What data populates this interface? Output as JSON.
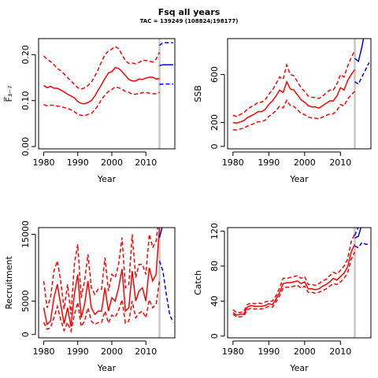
{
  "figure": {
    "title": "Fsq all years",
    "subtitle": "TAC = 139249 (108824;198177)"
  },
  "colors": {
    "history": "#ff0000",
    "projection": "#0000ff",
    "tac_year_line": "#c8c8c8"
  },
  "chart_data": [
    {
      "type": "line",
      "ylabel": "F̅₃₋₇",
      "xlabel": "Year",
      "xticks": [
        "1980",
        "1990",
        "2000",
        "2010"
      ],
      "yticks": [
        "0.00",
        "0.10",
        "0.20"
      ],
      "ytick_values": [
        0,
        0.1,
        0.2
      ],
      "xlim": [
        1978.5,
        2018.5
      ],
      "ylim": [
        -0.005,
        0.235
      ],
      "vline_year": 2014,
      "x": [
        1980,
        1981,
        1982,
        1983,
        1984,
        1985,
        1986,
        1987,
        1988,
        1989,
        1990,
        1991,
        1992,
        1993,
        1994,
        1995,
        1996,
        1997,
        1998,
        1999,
        2000,
        2001,
        2002,
        2003,
        2004,
        2005,
        2006,
        2007,
        2008,
        2009,
        2010,
        2011,
        2012,
        2013,
        2014
      ],
      "series": [
        {
          "role": "estimate",
          "style": "solid",
          "values": [
            0.133,
            0.128,
            0.131,
            0.127,
            0.127,
            0.123,
            0.119,
            0.114,
            0.11,
            0.106,
            0.098,
            0.094,
            0.093,
            0.096,
            0.1,
            0.11,
            0.123,
            0.135,
            0.148,
            0.16,
            0.163,
            0.172,
            0.17,
            0.163,
            0.155,
            0.146,
            0.143,
            0.143,
            0.147,
            0.146,
            0.149,
            0.151,
            0.151,
            0.147,
            0.148
          ]
        },
        {
          "role": "upper",
          "style": "dashed",
          "values": [
            0.197,
            0.19,
            0.185,
            0.178,
            0.17,
            0.165,
            0.158,
            0.15,
            0.143,
            0.135,
            0.128,
            0.125,
            0.128,
            0.133,
            0.14,
            0.153,
            0.168,
            0.185,
            0.2,
            0.208,
            0.212,
            0.218,
            0.213,
            0.2,
            0.187,
            0.181,
            0.182,
            0.18,
            0.183,
            0.188,
            0.187,
            0.186,
            0.184,
            0.19,
            0.205
          ]
        },
        {
          "role": "lower",
          "style": "dashed",
          "values": [
            0.091,
            0.089,
            0.09,
            0.09,
            0.088,
            0.087,
            0.085,
            0.083,
            0.08,
            0.076,
            0.07,
            0.068,
            0.067,
            0.07,
            0.072,
            0.08,
            0.09,
            0.103,
            0.112,
            0.12,
            0.124,
            0.13,
            0.128,
            0.125,
            0.12,
            0.118,
            0.114,
            0.114,
            0.116,
            0.117,
            0.118,
            0.116,
            0.115,
            0.115,
            0.118
          ]
        }
      ],
      "projection": {
        "x": [
          2014,
          2015,
          2016,
          2017,
          2018
        ],
        "mid": [
          0.176,
          0.178,
          0.178,
          0.178,
          0.178
        ],
        "upper": [
          0.22,
          0.226,
          0.226,
          0.226,
          0.226
        ],
        "lower": [
          0.135,
          0.136,
          0.136,
          0.136,
          0.136
        ]
      }
    },
    {
      "type": "line",
      "ylabel": "SSB",
      "xlabel": "Year",
      "xticks": [
        "1980",
        "1990",
        "2000",
        "2010"
      ],
      "yticks": [
        "0",
        "200",
        "600"
      ],
      "ytick_values": [
        0,
        200,
        600
      ],
      "xlim": [
        1978.5,
        2018.5
      ],
      "ylim": [
        -20,
        900
      ],
      "vline_year": 2014,
      "x": [
        1980,
        1981,
        1982,
        1983,
        1984,
        1985,
        1986,
        1987,
        1988,
        1989,
        1990,
        1991,
        1992,
        1993,
        1994,
        1995,
        1996,
        1997,
        1998,
        1999,
        2000,
        2001,
        2002,
        2003,
        2004,
        2005,
        2006,
        2007,
        2008,
        2009,
        2010,
        2011,
        2012,
        2013,
        2014
      ],
      "series": [
        {
          "role": "estimate",
          "style": "solid",
          "values": [
            200,
            195,
            205,
            215,
            240,
            255,
            270,
            290,
            290,
            310,
            350,
            380,
            420,
            470,
            450,
            540,
            480,
            470,
            430,
            390,
            370,
            340,
            330,
            330,
            320,
            340,
            360,
            380,
            380,
            420,
            490,
            470,
            550,
            600,
            640
          ]
        },
        {
          "role": "upper",
          "style": "dashed",
          "values": [
            260,
            250,
            265,
            280,
            310,
            330,
            345,
            370,
            370,
            390,
            435,
            470,
            520,
            580,
            560,
            680,
            600,
            590,
            540,
            490,
            460,
            420,
            410,
            410,
            400,
            420,
            445,
            470,
            470,
            520,
            600,
            580,
            670,
            740,
            800
          ]
        },
        {
          "role": "lower",
          "style": "dashed",
          "values": [
            140,
            138,
            145,
            152,
            170,
            180,
            192,
            206,
            206,
            220,
            250,
            272,
            300,
            335,
            322,
            385,
            342,
            335,
            305,
            277,
            265,
            245,
            238,
            236,
            230,
            245,
            258,
            272,
            272,
            300,
            350,
            338,
            395,
            430,
            460
          ]
        }
      ],
      "projection": {
        "x": [
          2014,
          2015,
          2016,
          2017,
          2018
        ],
        "mid": [
          735,
          710,
          830,
          1000,
          1200
        ],
        "upper": [
          900,
          950,
          1150,
          1300,
          1450
        ],
        "lower": [
          540,
          520,
          580,
          640,
          700
        ]
      }
    },
    {
      "type": "line",
      "ylabel": "Recruitment",
      "xlabel": "Year",
      "xticks": [
        "1980",
        "1990",
        "2000",
        "2010"
      ],
      "yticks": [
        "0",
        "5000",
        "15000"
      ],
      "ytick_values": [
        0,
        5000,
        15000
      ],
      "xlim": [
        1978.5,
        2018.5
      ],
      "ylim": [
        -500,
        16000
      ],
      "vline_year": 2014,
      "x": [
        1980,
        1981,
        1982,
        1983,
        1984,
        1985,
        1986,
        1987,
        1988,
        1989,
        1990,
        1991,
        1992,
        1993,
        1994,
        1995,
        1996,
        1997,
        1998,
        1999,
        2000,
        2001,
        2002,
        2003,
        2004,
        2005,
        2006,
        2007,
        2008,
        2009,
        2010,
        2011,
        2012,
        2013,
        2014
      ],
      "series": [
        {
          "role": "estimate",
          "style": "solid",
          "values": [
            4000,
            1500,
            2000,
            5500,
            7500,
            4500,
            1600,
            4000,
            1200,
            6000,
            9000,
            2500,
            4500,
            8000,
            4000,
            3000,
            3500,
            3500,
            7000,
            3500,
            5500,
            5000,
            7000,
            9800,
            3500,
            4000,
            9500,
            5000,
            6500,
            7000,
            5000,
            10000,
            8000,
            9000,
            16000
          ]
        },
        {
          "role": "upper",
          "style": "dashed",
          "values": [
            8000,
            4000,
            5500,
            9500,
            11000,
            8000,
            3800,
            7500,
            3000,
            10500,
            13500,
            5500,
            8000,
            12000,
            7000,
            6000,
            6800,
            6800,
            11500,
            6500,
            9000,
            8500,
            10500,
            14500,
            7000,
            7500,
            15000,
            8500,
            10500,
            10500,
            9000,
            15000,
            13000,
            14000,
            18000
          ]
        },
        {
          "role": "lower",
          "style": "dashed",
          "values": [
            1800,
            800,
            1000,
            2500,
            4200,
            2200,
            600,
            1800,
            500,
            2900,
            4800,
            1200,
            2000,
            4000,
            2000,
            1500,
            1800,
            1800,
            3500,
            1700,
            2900,
            2600,
            3600,
            5200,
            1700,
            2000,
            5000,
            2500,
            3200,
            3500,
            2500,
            5200,
            4000,
            4500,
            8000
          ]
        }
      ],
      "projection": {
        "x": [
          2014,
          2015,
          2016,
          2017,
          2018
        ],
        "mid": [
          14500,
          16500,
          17000,
          17000,
          17000
        ],
        "upper": [
          17000,
          18000,
          18000,
          18000,
          18000
        ],
        "lower": [
          11000,
          9500,
          6000,
          3000,
          1800
        ]
      }
    },
    {
      "type": "line",
      "ylabel": "Catch",
      "xlabel": "Year",
      "xticks": [
        "1980",
        "1990",
        "2000",
        "2010"
      ],
      "yticks": [
        "0",
        "40",
        "80",
        "120"
      ],
      "ytick_values": [
        0,
        40,
        80,
        120
      ],
      "xlim": [
        1978.5,
        2018.5
      ],
      "ylim": [
        -2,
        124
      ],
      "vline_year": 2014,
      "x": [
        1980,
        1981,
        1982,
        1983,
        1984,
        1985,
        1986,
        1987,
        1988,
        1989,
        1990,
        1991,
        1992,
        1993,
        1994,
        1995,
        1996,
        1997,
        1998,
        1999,
        2000,
        2001,
        2002,
        2003,
        2004,
        2005,
        2006,
        2007,
        2008,
        2009,
        2010,
        2011,
        2012,
        2013,
        2014
      ],
      "series": [
        {
          "role": "estimate",
          "style": "solid",
          "values": [
            27,
            24,
            25,
            25,
            33,
            35,
            34,
            34,
            34,
            35,
            37,
            36,
            42,
            50,
            60,
            61,
            61,
            62,
            63,
            60,
            62,
            54,
            54,
            53,
            54,
            57,
            59,
            62,
            66,
            64,
            68,
            72,
            79,
            96,
            105
          ]
        },
        {
          "role": "upper",
          "style": "dashed",
          "values": [
            30,
            27,
            27,
            28,
            36,
            38,
            37,
            38,
            37,
            39,
            40,
            40,
            46,
            55,
            66,
            66,
            67,
            68,
            69,
            66,
            68,
            59,
            59,
            58,
            60,
            63,
            65,
            69,
            73,
            71,
            75,
            80,
            88,
            108,
            117
          ]
        },
        {
          "role": "lower",
          "style": "dashed",
          "values": [
            25,
            22,
            22,
            23,
            30,
            32,
            31,
            31,
            31,
            32,
            34,
            33,
            39,
            46,
            55,
            56,
            56,
            57,
            58,
            55,
            57,
            50,
            50,
            49,
            50,
            52,
            54,
            57,
            60,
            59,
            62,
            66,
            72,
            88,
            96
          ]
        }
      ],
      "projection": {
        "x": [
          2014,
          2015,
          2016,
          2017,
          2018
        ],
        "mid": [
          112,
          114,
          128,
          130,
          132
        ],
        "upper": [
          115,
          125,
          135,
          140,
          145
        ],
        "lower": [
          103,
          101,
          107,
          105,
          105
        ]
      }
    }
  ]
}
